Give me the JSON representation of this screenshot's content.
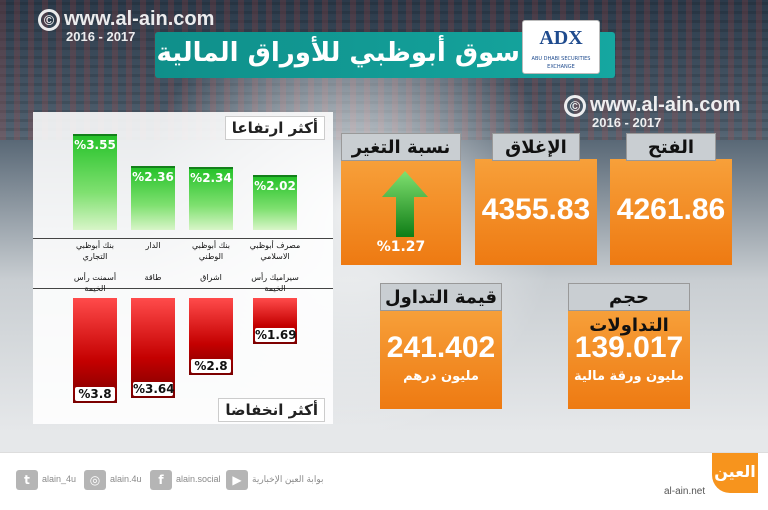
{
  "watermark": {
    "symbol": "©",
    "url": "www.al-ain.com",
    "years": "2016 - 2017"
  },
  "title": "سوق أبوظبي للأوراق المالية",
  "logo": {
    "abbr": "ADX",
    "tagline": "ABU DHABI SECURITIES EXCHANGE"
  },
  "gainers": {
    "label": "أكثر ارتفاعا",
    "items": [
      {
        "name": "بنك أبوظبي التجاري",
        "value": "%3.55",
        "pct": 3.55
      },
      {
        "name": "الدار",
        "value": "%2.36",
        "pct": 2.36
      },
      {
        "name": "بنك أبوظبي الوطني",
        "value": "%2.34",
        "pct": 2.34
      },
      {
        "name": "مصرف أبوظبي الاسلامي",
        "value": "%2.02",
        "pct": 2.02
      }
    ]
  },
  "losers": {
    "label": "أكثر انخفاضا",
    "items": [
      {
        "name": "أسمنت رأس الخيمة",
        "value": "%3.8",
        "pct": 3.8
      },
      {
        "name": "طاقة",
        "value": "%3.64",
        "pct": 3.64
      },
      {
        "name": "اشراق",
        "value": "%2.8",
        "pct": 2.8
      },
      {
        "name": "سيراميك رأس الخيمة",
        "value": "%1.69",
        "pct": 1.69
      }
    ]
  },
  "cards": {
    "change": {
      "label": "نسبة التغير",
      "value": "%1.27"
    },
    "close": {
      "label": "الإغلاق",
      "value": "4355.83"
    },
    "open": {
      "label": "الفتح",
      "value": "4261.86"
    },
    "turnover": {
      "label": "قيمة التداول",
      "value": "241.402",
      "unit": "مليون درهم"
    },
    "volume": {
      "label": "حجم التداولات",
      "value": "139.017",
      "unit": "مليون ورقة مالية"
    }
  },
  "footer": {
    "twitter": "alain_4u",
    "instagram": "alain.4u",
    "facebook": "alain.social",
    "youtube": "بوابة العين الإخبارية",
    "site": "al-ain.net",
    "logo_text": "العين"
  },
  "colors": {
    "teal": "#15a7a0",
    "orange": "#f28a22",
    "green": "#26c22a",
    "red": "#d40000"
  }
}
